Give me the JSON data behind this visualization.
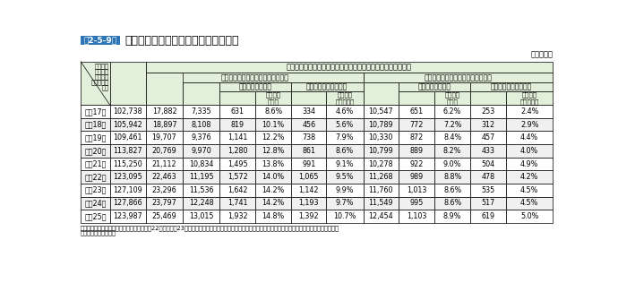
{
  "title_box_text": "第2-5-9表",
  "title_text": "一般市民による応急手当の実施の有無",
  "subtitle_right": "（各年中）",
  "note_line1": "（備考）　東日本大震災の影響により、平成22年及び平成23年の釜石大槌地区行政事務組合消防本部及び陸前高田市消防本部のデータは除いた数値により集",
  "note_line2": "　　　　計している。",
  "header_main": "心原性でかつ心肺停止の時点が一般市民により目撃された症例",
  "header_with_cpr": "うち、一般市民による応急処置あり",
  "header_without_cpr": "うち、一般市民による応急処置なし",
  "header_1m_surv": "１ヵ月後生存者数",
  "header_1m_rec": "１ヵ月後社会復帰者数",
  "header_1m_surv_rate_1": "１ヵ月後",
  "header_1m_surv_rate_2": "生存率",
  "header_1m_rec_rate_1": "１ヵ月後",
  "header_1m_rec_rate_2": "社会復帰率",
  "header_col0_l1": "救急隊が",
  "header_col0_l2": "搬送した",
  "header_col0_l3": "心肺機能",
  "header_col0_l4": "停止傷病者",
  "header_col0_l5": "総数",
  "years": [
    "平成17年",
    "平成18年",
    "平成19年",
    "平成20年",
    "平成21年",
    "平成22年",
    "平成23年",
    "平成24年",
    "平成25年"
  ],
  "col_total": [
    102738,
    105942,
    109461,
    113827,
    115250,
    123095,
    127109,
    127866,
    123987
  ],
  "col_witnessed": [
    17882,
    18897,
    19707,
    20769,
    21112,
    22463,
    23296,
    23797,
    25469
  ],
  "col_cpr_count": [
    7335,
    8108,
    9376,
    9970,
    10834,
    11195,
    11536,
    12248,
    13015
  ],
  "col_cpr_surv_n": [
    631,
    819,
    1141,
    1280,
    1495,
    1572,
    1642,
    1741,
    1932
  ],
  "col_cpr_surv_pct": [
    "8.6%",
    "10.1%",
    "12.2%",
    "12.8%",
    "13.8%",
    "14.0%",
    "14.2%",
    "14.2%",
    "14.8%"
  ],
  "col_cpr_rec_n": [
    334,
    456,
    738,
    861,
    991,
    1065,
    1142,
    1193,
    1392
  ],
  "col_cpr_rec_pct": [
    "4.6%",
    "5.6%",
    "7.9%",
    "8.6%",
    "9.1%",
    "9.5%",
    "9.9%",
    "9.7%",
    "10.7%"
  ],
  "col_nocpr_count": [
    10547,
    10789,
    10330,
    10799,
    10278,
    11268,
    11760,
    11549,
    12454
  ],
  "col_nocpr_surv_n": [
    651,
    772,
    872,
    889,
    922,
    989,
    1013,
    995,
    1103
  ],
  "col_nocpr_surv_pct": [
    "6.2%",
    "7.2%",
    "8.4%",
    "8.2%",
    "9.0%",
    "8.8%",
    "8.6%",
    "8.6%",
    "8.9%"
  ],
  "col_nocpr_rec_n": [
    253,
    312,
    457,
    433,
    504,
    478,
    535,
    517,
    619
  ],
  "col_nocpr_rec_pct": [
    "2.4%",
    "2.9%",
    "4.4%",
    "4.0%",
    "4.9%",
    "4.2%",
    "4.5%",
    "4.5%",
    "5.0%"
  ],
  "color_title_box": "#2e75b6",
  "color_header_bg": "#e2efda",
  "color_row_a": "#ffffff",
  "color_row_b": "#f0f0f0"
}
